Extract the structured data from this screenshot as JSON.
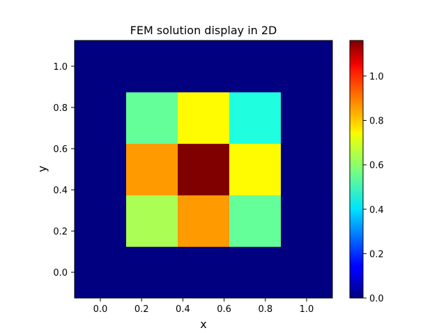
{
  "chart_data": {
    "type": "heatmap",
    "title": "FEM solution display in 2D",
    "xlabel": "x",
    "ylabel": "y",
    "xlim": [
      -0.125,
      1.125
    ],
    "ylim": [
      -0.125,
      1.125
    ],
    "xticks": [
      "0.0",
      "0.2",
      "0.4",
      "0.6",
      "0.8",
      "1.0"
    ],
    "yticks": [
      "0.0",
      "0.2",
      "0.4",
      "0.6",
      "0.8",
      "1.0"
    ],
    "colormap": "jet",
    "colorbar": {
      "range": [
        0.0,
        1.16
      ],
      "ticks": [
        "0.0",
        "0.2",
        "0.4",
        "0.6",
        "0.8",
        "1.0"
      ]
    },
    "x": [
      0.0,
      0.25,
      0.5,
      0.75,
      1.0
    ],
    "y": [
      0.0,
      0.25,
      0.5,
      0.75,
      1.0
    ],
    "values": [
      [
        0.0,
        0.0,
        0.0,
        0.0,
        0.0
      ],
      [
        0.0,
        0.63,
        0.84,
        0.55,
        0.0
      ],
      [
        0.0,
        0.84,
        1.16,
        0.73,
        0.0
      ],
      [
        0.0,
        0.55,
        0.73,
        0.47,
        0.0
      ],
      [
        0.0,
        0.0,
        0.0,
        0.0,
        0.0
      ]
    ],
    "grid": false,
    "legend": "none"
  }
}
